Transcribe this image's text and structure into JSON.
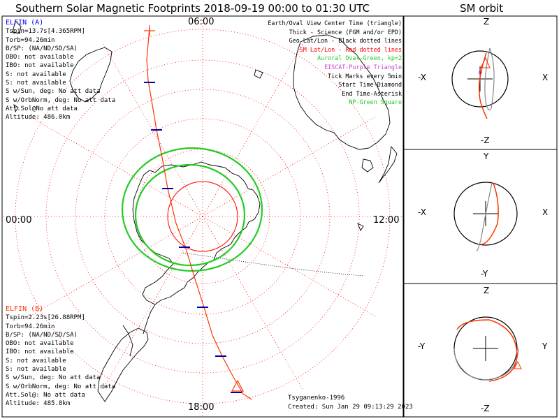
{
  "title": "Southern Solar Magnetic Footprints 2018-09-19 00:00 to 01:30 UTC",
  "orbit_title": "SM orbit",
  "map": {
    "time_labels": {
      "top": "06:00",
      "left": "00:00",
      "right": "12:00",
      "bottom": "18:00"
    }
  },
  "elfin_a": {
    "name": "ELFIN (A)",
    "lines": [
      "Tspin=13.7s[4.365RPM]",
      "Torb=94.26min",
      "B/SP: (NA/ND/SD/SA)",
      "OBO: not available",
      "IBO: not available",
      "S: not available",
      "S: not available",
      "S w/Sun, deg: No att data",
      "S w/OrbNorm, deg: No att data",
      "Att.Sol@No att data",
      "Altitude: 486.0km"
    ]
  },
  "elfin_b": {
    "name": "ELFIN (B)",
    "lines": [
      "Tspin=2.23s[26.88RPM]",
      "Torb=94.26min",
      "B/SP: (NA/ND/SD/SA)",
      "OBO: not available",
      "IBO: not available",
      "S: not available",
      "S: not available",
      "S w/Sun, deg: No att data",
      "S w/OrbNorm, deg: No att data",
      "Att.Sol@: No att data",
      "Altitude: 485.8km"
    ]
  },
  "legend": [
    {
      "text": "Earth/Oval View Center Time (triangle)",
      "color": "#000000"
    },
    {
      "text": "Thick - Science (FGM and/or EPD)",
      "color": "#000000"
    },
    {
      "text": "Geo Lat/Lon - Black dotted lines",
      "color": "#000000"
    },
    {
      "text": "SM Lat/Lon - Red dotted lines",
      "color": "#ff0000"
    },
    {
      "text": "Auroral Oval-Green, kp=2",
      "color": "#22cc22"
    },
    {
      "text": "EISCAT-Purple Triangle",
      "color": "#cc44cc"
    },
    {
      "text": "Tick Marks every 5min",
      "color": "#000000"
    },
    {
      "text": "Start Time-Diamond",
      "color": "#000000"
    },
    {
      "text": "End Time-Asterisk",
      "color": "#000000"
    },
    {
      "text": "NP-Green Square",
      "color": "#22cc22"
    }
  ],
  "credits": {
    "model": "Tsyganenko-1996",
    "created": "Created: Sun Jan 29 09:13:29 2023"
  },
  "orbit_panels": [
    {
      "top": "Z",
      "bottom": "-Z",
      "left": "-X",
      "right": "X"
    },
    {
      "top": "Y",
      "bottom": "-Y",
      "left": "-X",
      "right": "X"
    },
    {
      "top": "Z",
      "bottom": "-Z",
      "left": "-Y",
      "right": "Y"
    }
  ],
  "chart_data": {
    "type": "map",
    "projection": "south polar, solar magnetic",
    "local_time_labels": [
      "06:00",
      "12:00",
      "18:00",
      "00:00"
    ],
    "auroral_oval_kp": 2,
    "footprint_tick_interval_min": 5
  }
}
